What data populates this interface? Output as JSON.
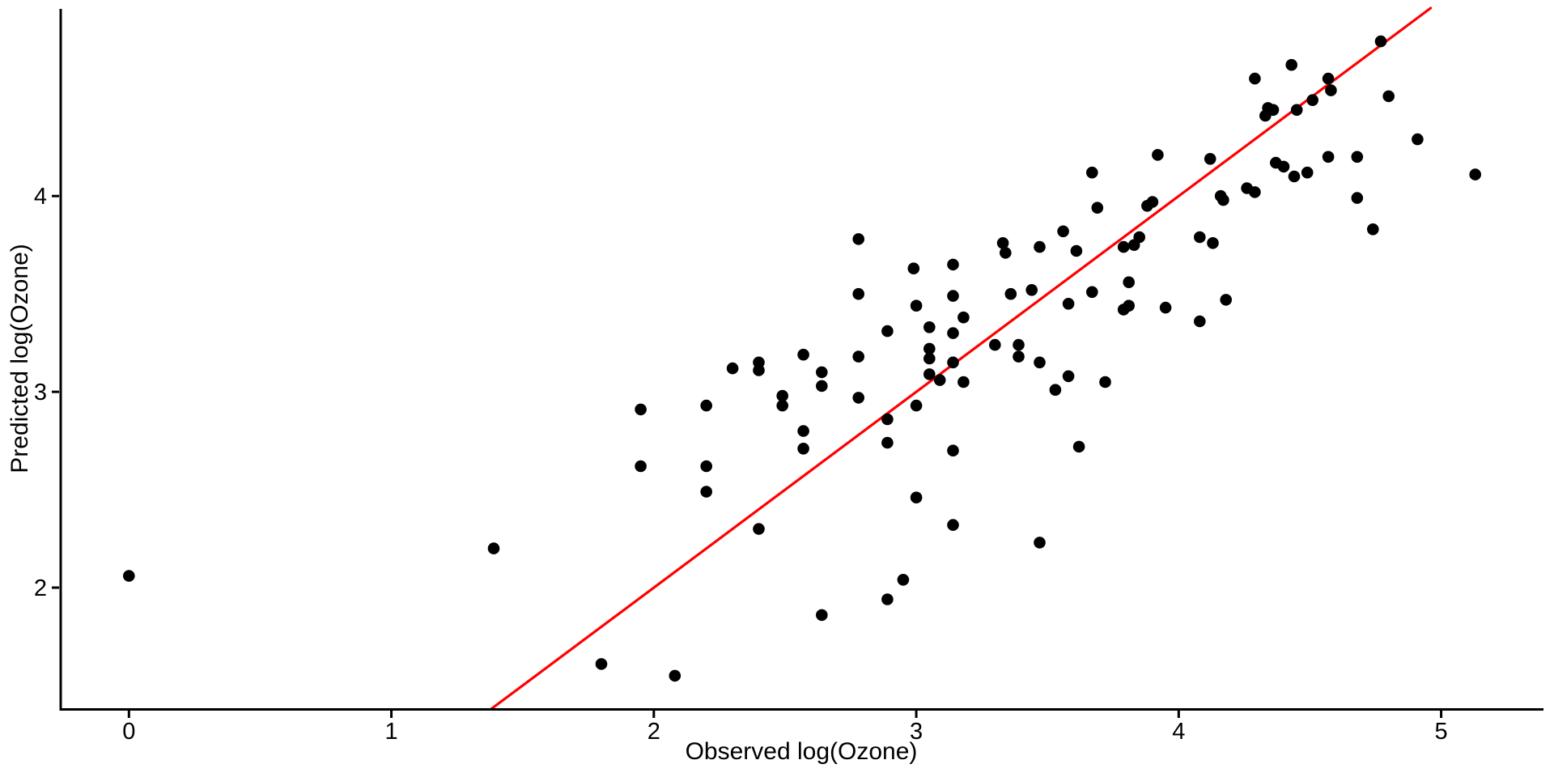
{
  "chart_data": {
    "type": "scatter",
    "title": "",
    "xlabel": "Observed log(Ozone)",
    "ylabel": "Predicted log(Ozone)",
    "x_ticks": [
      0,
      1,
      2,
      3,
      4,
      5
    ],
    "y_ticks": [
      2,
      3,
      4
    ],
    "xlim": [
      -0.26,
      5.43
    ],
    "ylim": [
      1.38,
      4.96
    ],
    "grid": false,
    "legend": "none",
    "point_color": "#000000",
    "axis_color": "#000000",
    "background_color": "#ffffff",
    "reference_line": {
      "type": "identity",
      "slope": 1,
      "intercept": 0,
      "color": "#ff0000"
    },
    "points": [
      [
        0.0,
        2.06
      ],
      [
        1.39,
        2.2
      ],
      [
        1.8,
        1.61
      ],
      [
        2.08,
        1.55
      ],
      [
        2.4,
        2.3
      ],
      [
        2.64,
        1.86
      ],
      [
        1.95,
        2.91
      ],
      [
        1.95,
        2.62
      ],
      [
        2.2,
        2.93
      ],
      [
        2.2,
        2.62
      ],
      [
        2.2,
        2.49
      ],
      [
        2.3,
        3.12
      ],
      [
        2.4,
        3.15
      ],
      [
        2.4,
        3.11
      ],
      [
        2.57,
        3.19
      ],
      [
        2.64,
        3.1
      ],
      [
        2.64,
        3.03
      ],
      [
        2.49,
        2.98
      ],
      [
        2.49,
        2.93
      ],
      [
        2.57,
        2.8
      ],
      [
        2.57,
        2.71
      ],
      [
        3.14,
        2.32
      ],
      [
        3.47,
        2.23
      ],
      [
        2.95,
        2.04
      ],
      [
        2.89,
        1.94
      ],
      [
        2.78,
        3.5
      ],
      [
        2.78,
        3.18
      ],
      [
        2.78,
        2.97
      ],
      [
        2.89,
        2.86
      ],
      [
        2.89,
        2.74
      ],
      [
        3.0,
        2.93
      ],
      [
        3.14,
        2.7
      ],
      [
        3.0,
        2.46
      ],
      [
        3.62,
        2.72
      ],
      [
        3.0,
        3.44
      ],
      [
        3.14,
        3.49
      ],
      [
        3.36,
        3.5
      ],
      [
        3.44,
        3.52
      ],
      [
        3.18,
        3.38
      ],
      [
        3.05,
        3.33
      ],
      [
        3.14,
        3.3
      ],
      [
        2.89,
        3.31
      ],
      [
        3.05,
        3.22
      ],
      [
        3.05,
        3.17
      ],
      [
        3.14,
        3.15
      ],
      [
        3.3,
        3.24
      ],
      [
        3.39,
        3.24
      ],
      [
        3.39,
        3.18
      ],
      [
        3.05,
        3.09
      ],
      [
        3.09,
        3.06
      ],
      [
        3.18,
        3.05
      ],
      [
        3.47,
        3.15
      ],
      [
        3.58,
        3.08
      ],
      [
        3.53,
        3.01
      ],
      [
        3.72,
        3.05
      ],
      [
        2.78,
        3.78
      ],
      [
        2.99,
        3.63
      ],
      [
        3.14,
        3.65
      ],
      [
        3.33,
        3.76
      ],
      [
        3.34,
        3.71
      ],
      [
        3.47,
        3.74
      ],
      [
        3.56,
        3.82
      ],
      [
        3.61,
        3.72
      ],
      [
        3.67,
        4.12
      ],
      [
        3.69,
        3.94
      ],
      [
        3.88,
        3.95
      ],
      [
        3.9,
        3.97
      ],
      [
        3.85,
        3.79
      ],
      [
        3.79,
        3.74
      ],
      [
        3.83,
        3.75
      ],
      [
        3.92,
        4.21
      ],
      [
        3.81,
        3.56
      ],
      [
        3.67,
        3.51
      ],
      [
        3.58,
        3.45
      ],
      [
        3.79,
        3.42
      ],
      [
        3.81,
        3.44
      ],
      [
        3.95,
        3.43
      ],
      [
        4.18,
        3.47
      ],
      [
        4.08,
        3.36
      ],
      [
        4.77,
        4.79
      ],
      [
        4.43,
        4.67
      ],
      [
        4.29,
        4.6
      ],
      [
        4.57,
        4.6
      ],
      [
        4.58,
        4.54
      ],
      [
        4.51,
        4.49
      ],
      [
        4.8,
        4.51
      ],
      [
        4.45,
        4.44
      ],
      [
        4.34,
        4.45
      ],
      [
        4.36,
        4.44
      ],
      [
        4.33,
        4.41
      ],
      [
        4.91,
        4.29
      ],
      [
        4.12,
        4.19
      ],
      [
        4.57,
        4.2
      ],
      [
        4.68,
        4.2
      ],
      [
        5.13,
        4.11
      ],
      [
        4.37,
        4.17
      ],
      [
        4.4,
        4.15
      ],
      [
        4.44,
        4.1
      ],
      [
        4.49,
        4.12
      ],
      [
        4.26,
        4.04
      ],
      [
        4.29,
        4.02
      ],
      [
        4.16,
        4.0
      ],
      [
        4.17,
        3.98
      ],
      [
        4.68,
        3.99
      ],
      [
        4.74,
        3.83
      ],
      [
        4.08,
        3.79
      ],
      [
        4.13,
        3.76
      ]
    ]
  }
}
